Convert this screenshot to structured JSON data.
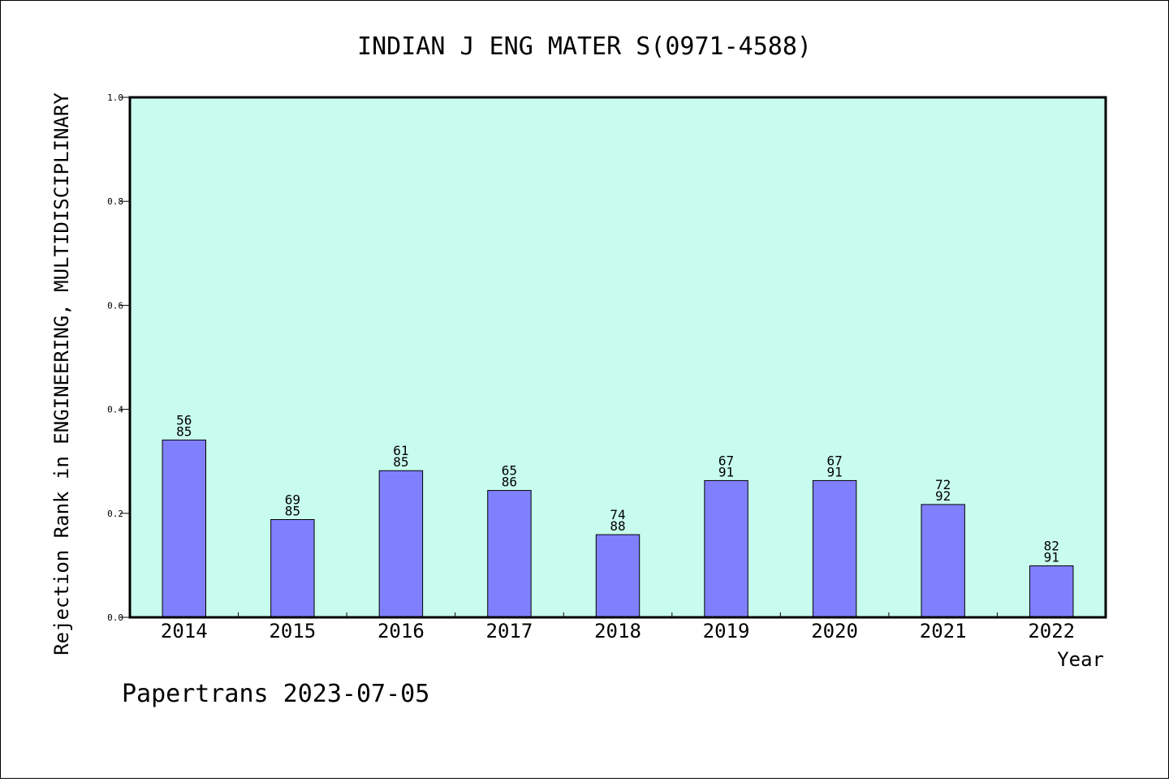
{
  "chart_data": {
    "type": "bar",
    "title": "INDIAN J ENG MATER S(0971-4588)",
    "xlabel": "Year",
    "ylabel": "Rejection Rank in ENGINEERING, MULTIDISCIPLINARY",
    "ylim": [
      0,
      1.0
    ],
    "yticks": [
      "0.0",
      "0.2",
      "0.4",
      "0.6",
      "0.8",
      "1.0"
    ],
    "categories": [
      "2014",
      "2015",
      "2016",
      "2017",
      "2018",
      "2019",
      "2020",
      "2021",
      "2022"
    ],
    "values": [
      0.341,
      0.188,
      0.282,
      0.244,
      0.159,
      0.263,
      0.263,
      0.217,
      0.099
    ],
    "bar_labels": [
      [
        "56",
        "85"
      ],
      [
        "69",
        "85"
      ],
      [
        "61",
        "85"
      ],
      [
        "65",
        "86"
      ],
      [
        "74",
        "88"
      ],
      [
        "67",
        "91"
      ],
      [
        "67",
        "91"
      ],
      [
        "72",
        "92"
      ],
      [
        "82",
        "91"
      ]
    ],
    "grid": false,
    "colors": {
      "bar": "#8080ff",
      "plot_background": "#c8fcee",
      "axis": "#000000"
    }
  },
  "footer": "Papertrans 2023-07-05"
}
